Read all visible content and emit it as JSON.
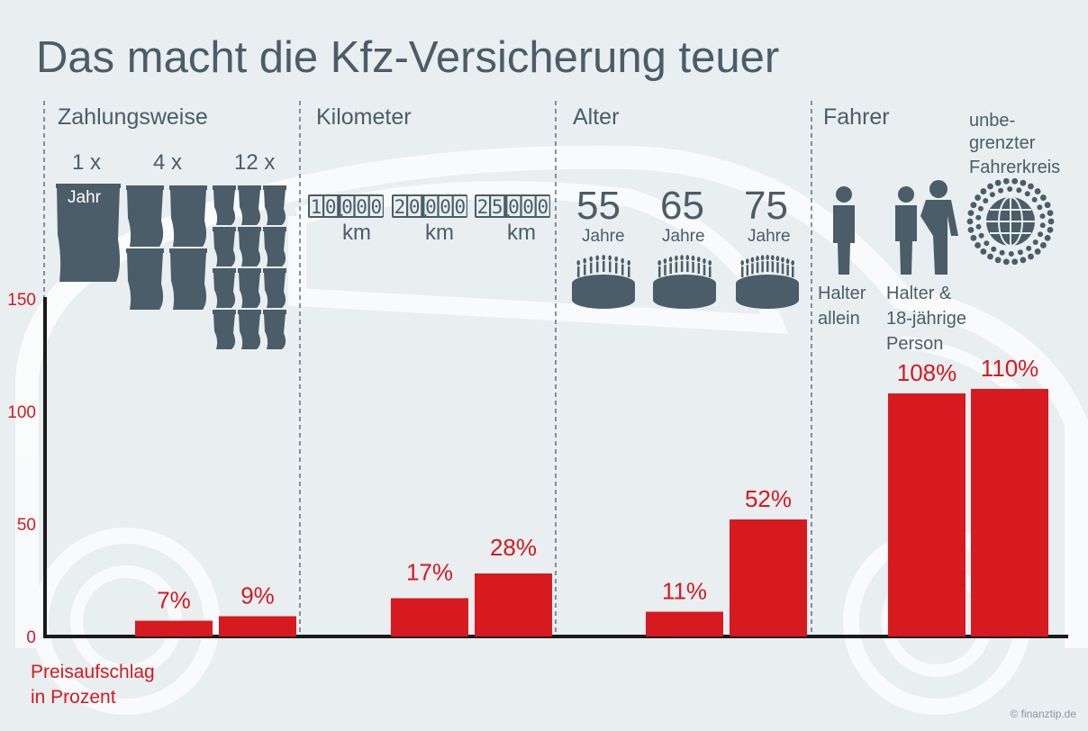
{
  "chart_data": {
    "type": "bar",
    "title": "Das macht die Kfz-Versicherung teuer",
    "ylabel": "Preisaufschlag in Prozent",
    "ylabel_lines": [
      "Preisaufschlag",
      "in Prozent"
    ],
    "ylim": [
      0,
      150
    ],
    "yticks": [
      0,
      50,
      100,
      150
    ],
    "groups": [
      {
        "name": "Zahlungsweise",
        "categories": [
          "1 x",
          "4 x",
          "12 x"
        ],
        "values": [
          null,
          7,
          9
        ],
        "value_labels": [
          "",
          "7%",
          "9%"
        ],
        "icon_label": "Jahr"
      },
      {
        "name": "Kilometer",
        "categories": [
          "10.000 km",
          "20.000 km",
          "25.000 km"
        ],
        "odometers": [
          "10.000",
          "20.000",
          "25.000"
        ],
        "unit": "km",
        "values": [
          null,
          17,
          28
        ],
        "value_labels": [
          "",
          "17%",
          "28%"
        ]
      },
      {
        "name": "Alter",
        "categories": [
          "55 Jahre",
          "65 Jahre",
          "75 Jahre"
        ],
        "ages": [
          "55",
          "65",
          "75"
        ],
        "unit": "Jahre",
        "values": [
          null,
          11,
          52
        ],
        "value_labels": [
          "",
          "11%",
          "52%"
        ]
      },
      {
        "name": "Fahrer",
        "categories": [
          "Halter allein",
          "Halter & 18-jährige Person",
          "unbegrenzter Fahrerkreis"
        ],
        "cat_lines": [
          [
            "Halter",
            "allein"
          ],
          [
            "Halter &",
            "18-jährige",
            "Person"
          ],
          [
            "unbe-",
            "grenzter",
            "Fahrerkreis"
          ]
        ],
        "values": [
          null,
          108,
          110
        ],
        "value_labels": [
          "",
          "108%",
          "110%"
        ]
      }
    ]
  },
  "colors": {
    "background": "#e9eef0",
    "title": "#4a5d68",
    "icons": "#4a5d68",
    "bars": "#d71920",
    "labels": "#d71920",
    "axis": "#1a1a1a"
  },
  "copyright": "© finanztip.de"
}
